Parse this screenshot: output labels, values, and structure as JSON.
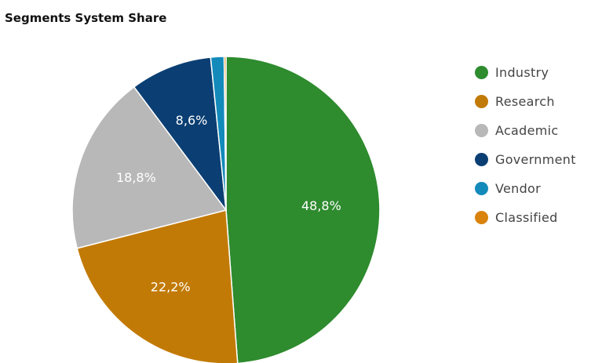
{
  "chart_data": {
    "type": "pie",
    "title": "Segments System Share",
    "categories": [
      "Industry",
      "Research",
      "Academic",
      "Government",
      "Vendor",
      "Classified"
    ],
    "values": [
      48.8,
      22.2,
      18.8,
      8.6,
      1.4,
      0.2
    ],
    "data_labels": [
      "48,8%",
      "22,2%",
      "18,8%",
      "8,6%",
      "",
      ""
    ],
    "colors": [
      "#2e8b2e",
      "#c27a06",
      "#b8b8b8",
      "#0b3f73",
      "#138aba",
      "#d9830d"
    ],
    "legend_position": "right"
  }
}
